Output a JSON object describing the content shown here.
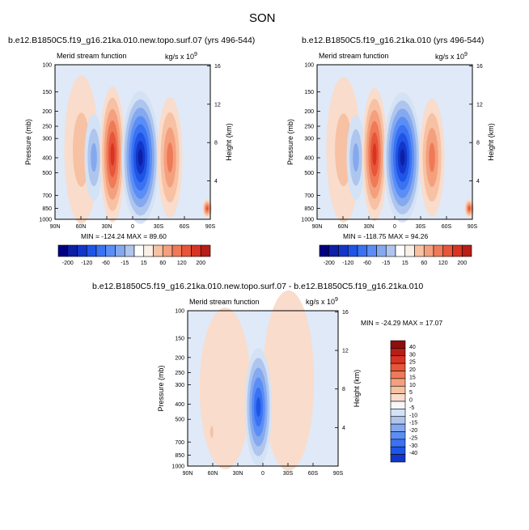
{
  "figure": {
    "season": "SON",
    "panels": [
      {
        "title": "b.e12.B1850C5.f19_g16.21ka.010.new.topo.surf.07 (yrs 496-544)",
        "subtitle": "Merid stream function",
        "units": "kg/s x 10",
        "units_exp": "9",
        "left_axis_label": "Pressure (mb)",
        "right_axis_label": "Height (km)",
        "stats": "MIN = -124.24   MAX = 89.60"
      },
      {
        "title": "b.e12.B1850C5.f19_g16.21ka.010 (yrs 496-544)",
        "subtitle": "Merid stream function",
        "units": "kg/s x 10",
        "units_exp": "9",
        "left_axis_label": "Pressure (mb)",
        "right_axis_label": "Height (km)",
        "stats": "MIN = -118.75   MAX = 94.26"
      },
      {
        "title": "b.e12.B1850C5.f19_g16.21ka.010.new.topo.surf.07 - b.e12.B1850C5.f19_g16.21ka.010",
        "subtitle": "Merid stream function",
        "units": "kg/s x 10",
        "units_exp": "9",
        "left_axis_label": "Pressure (mb)",
        "right_axis_label": "Height (km)",
        "stats": "MIN = -24.29   MAX = 17.07"
      }
    ]
  },
  "chart_data": [
    {
      "type": "heatmap",
      "title": "b.e12.B1850C5.f19_g16.21ka.010.new.topo.surf.07 (yrs 496-544)",
      "x_ticks": [
        "90N",
        "60N",
        "30N",
        "0",
        "30S",
        "60S",
        "90S"
      ],
      "y_ticks_pressure": [
        "100",
        "150",
        "200",
        "250",
        "300",
        "400",
        "500",
        "700",
        "850",
        "1000"
      ],
      "y_ticks_height": [
        "16",
        "12",
        "8",
        "4"
      ],
      "min": -124.24,
      "max": 89.6,
      "colorbar_levels": [
        -200,
        -160,
        -120,
        -80,
        -60,
        -40,
        -15,
        -1,
        1,
        15,
        40,
        60,
        80,
        120,
        160,
        200
      ],
      "colorbar_labels": [
        "-200",
        "-120",
        "-60",
        "-15",
        "15",
        "60",
        "120",
        "200"
      ]
    },
    {
      "type": "heatmap",
      "title": "b.e12.B1850C5.f19_g16.21ka.010 (yrs 496-544)",
      "x_ticks": [
        "90N",
        "60N",
        "30N",
        "0",
        "30S",
        "60S",
        "90S"
      ],
      "y_ticks_pressure": [
        "100",
        "150",
        "200",
        "250",
        "300",
        "400",
        "500",
        "700",
        "850",
        "1000"
      ],
      "y_ticks_height": [
        "16",
        "12",
        "8",
        "4"
      ],
      "min": -118.75,
      "max": 94.26,
      "colorbar_levels": [
        -200,
        -160,
        -120,
        -80,
        -60,
        -40,
        -15,
        -1,
        1,
        15,
        40,
        60,
        80,
        120,
        160,
        200
      ],
      "colorbar_labels": [
        "-200",
        "-120",
        "-60",
        "-15",
        "15",
        "60",
        "120",
        "200"
      ]
    },
    {
      "type": "heatmap",
      "title": "b.e12.B1850C5.f19_g16.21ka.010.new.topo.surf.07 - b.e12.B1850C5.f19_g16.21ka.010",
      "x_ticks": [
        "90N",
        "60N",
        "30N",
        "0",
        "30S",
        "60S",
        "90S"
      ],
      "y_ticks_pressure": [
        "100",
        "150",
        "200",
        "250",
        "300",
        "400",
        "500",
        "700",
        "850",
        "1000"
      ],
      "y_ticks_height": [
        "16",
        "12",
        "8",
        "4"
      ],
      "min": -24.29,
      "max": 17.07,
      "colorbar_levels": [
        -40,
        -30,
        -25,
        -20,
        -15,
        -10,
        -5,
        0,
        5,
        10,
        15,
        20,
        25,
        30,
        40
      ],
      "colorbar_labels": [
        "40",
        "30",
        "25",
        "20",
        "15",
        "10",
        "5",
        "0",
        "-5",
        "-10",
        "-15",
        "-20",
        "-25",
        "-30",
        "-40"
      ]
    }
  ],
  "colors": {
    "neg": [
      "#000080",
      "#0c1fa6",
      "#1236c8",
      "#1f55e6",
      "#3a72f2",
      "#5b8ef5",
      "#85a9ef",
      "#aec6ee",
      "#d4e2f5"
    ],
    "pos": [
      "#f9dccb",
      "#f7c1a3",
      "#f4a07e",
      "#ef7a57",
      "#e7553a",
      "#d83423",
      "#b81d16",
      "#8c0f0c"
    ],
    "bg_pos": "#fbe3d4",
    "bg_neg": "#dfe9f8",
    "white": "#f5f7fb"
  }
}
